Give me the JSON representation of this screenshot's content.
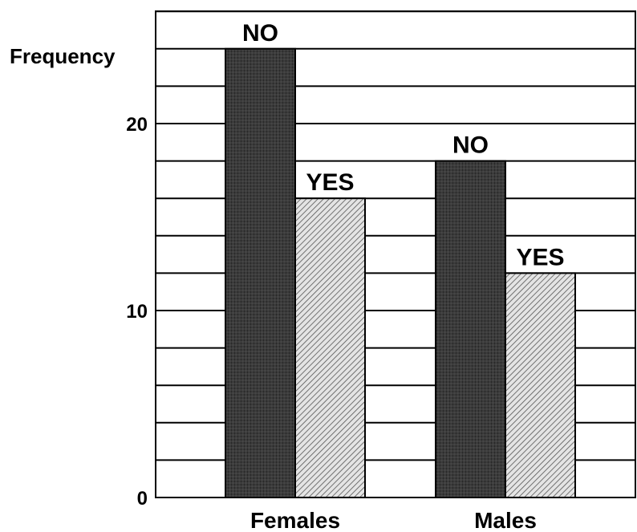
{
  "chart_data": {
    "type": "bar",
    "ylabel": "Frequency",
    "categories": [
      "Females",
      "Males"
    ],
    "series": [
      {
        "name": "NO",
        "values": [
          24,
          18
        ]
      },
      {
        "name": "YES",
        "values": [
          16,
          12
        ]
      }
    ],
    "ylim": [
      0,
      26
    ],
    "yticks": [
      "0",
      "10",
      "20"
    ],
    "ytick_values": [
      0,
      10,
      20
    ],
    "grid_step": 2,
    "grid": true,
    "legend": "none (labels above bars)",
    "colors": {
      "NO": "#3a3a3a",
      "YES": "#c8c8c8"
    }
  }
}
